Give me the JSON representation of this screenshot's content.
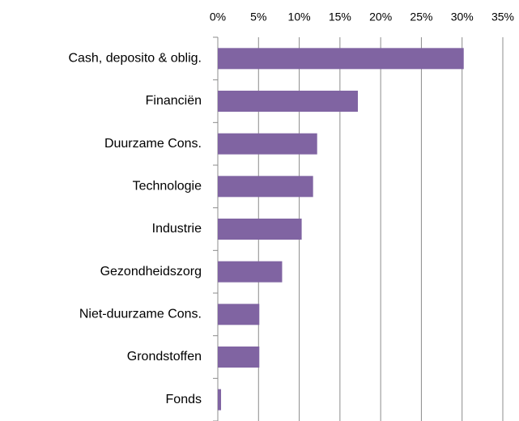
{
  "chart_data": {
    "type": "hbar",
    "categories": [
      "Cash, deposito & oblig.",
      "Financiën",
      "Duurzame Cons.",
      "Technologie",
      "Industrie",
      "Gezondheidszorg",
      "Niet-duurzame Cons.",
      "Grondstoffen",
      "Fonds"
    ],
    "values": [
      30.2,
      17.2,
      12.2,
      11.7,
      10.3,
      7.9,
      5.1,
      5.1,
      0.4
    ],
    "color": "#8064a2",
    "xlim": [
      0,
      35
    ],
    "xticks": [
      {
        "value": 0,
        "label": "0%"
      },
      {
        "value": 5,
        "label": "5%"
      },
      {
        "value": 10,
        "label": "10%"
      },
      {
        "value": 15,
        "label": "15%"
      },
      {
        "value": 20,
        "label": "20%"
      },
      {
        "value": 25,
        "label": "25%"
      },
      {
        "value": 30,
        "label": "30%"
      },
      {
        "value": 35,
        "label": "35%"
      }
    ],
    "grid": true
  }
}
